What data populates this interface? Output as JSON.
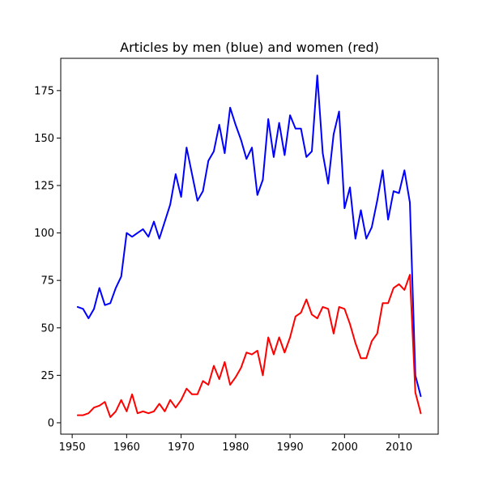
{
  "chart_data": {
    "type": "line",
    "title": "Articles by men (blue) and women (red)",
    "xlabel": "",
    "ylabel": "",
    "xlim": [
      1947.9,
      2017.2
    ],
    "ylim": [
      -6.0,
      192.0
    ],
    "xticks": [
      1950,
      1960,
      1970,
      1980,
      1990,
      2000,
      2010
    ],
    "yticks": [
      0,
      25,
      50,
      75,
      100,
      125,
      150,
      175
    ],
    "grid": false,
    "x": [
      1951,
      1952,
      1953,
      1954,
      1955,
      1956,
      1957,
      1958,
      1959,
      1960,
      1961,
      1962,
      1963,
      1964,
      1965,
      1966,
      1967,
      1968,
      1969,
      1970,
      1971,
      1972,
      1973,
      1974,
      1975,
      1976,
      1977,
      1978,
      1979,
      1980,
      1981,
      1982,
      1983,
      1984,
      1985,
      1986,
      1987,
      1988,
      1989,
      1990,
      1991,
      1992,
      1993,
      1994,
      1995,
      1996,
      1997,
      1998,
      1999,
      2000,
      2001,
      2002,
      2003,
      2004,
      2005,
      2006,
      2007,
      2008,
      2009,
      2010,
      2011,
      2012,
      2013,
      2014
    ],
    "series": [
      {
        "color": "#0000ff",
        "values": [
          61,
          60,
          55,
          60,
          71,
          62,
          63,
          71,
          77,
          100,
          98,
          100,
          102,
          98,
          106,
          97,
          106,
          115,
          131,
          119,
          145,
          131,
          117,
          122,
          138,
          143,
          157,
          142,
          166,
          157,
          149,
          139,
          145,
          120,
          128,
          160,
          140,
          158,
          141,
          162,
          155,
          155,
          140,
          143,
          183,
          142,
          126,
          152,
          164,
          113,
          124,
          97,
          112,
          97,
          103,
          117,
          133,
          107,
          122,
          121,
          133,
          116,
          25,
          14
        ]
      },
      {
        "color": "#ff0000",
        "values": [
          4,
          4,
          5,
          8,
          9,
          11,
          3,
          6,
          12,
          6,
          15,
          5,
          6,
          5,
          6,
          10,
          6,
          12,
          8,
          12,
          18,
          15,
          15,
          22,
          20,
          30,
          23,
          32,
          20,
          24,
          29,
          37,
          36,
          38,
          25,
          45,
          36,
          45,
          37,
          45,
          56,
          58,
          65,
          57,
          55,
          61,
          60,
          47,
          61,
          60,
          52,
          42,
          34,
          34,
          43,
          47,
          63,
          63,
          71,
          73,
          70,
          78,
          16,
          5
        ]
      }
    ]
  }
}
